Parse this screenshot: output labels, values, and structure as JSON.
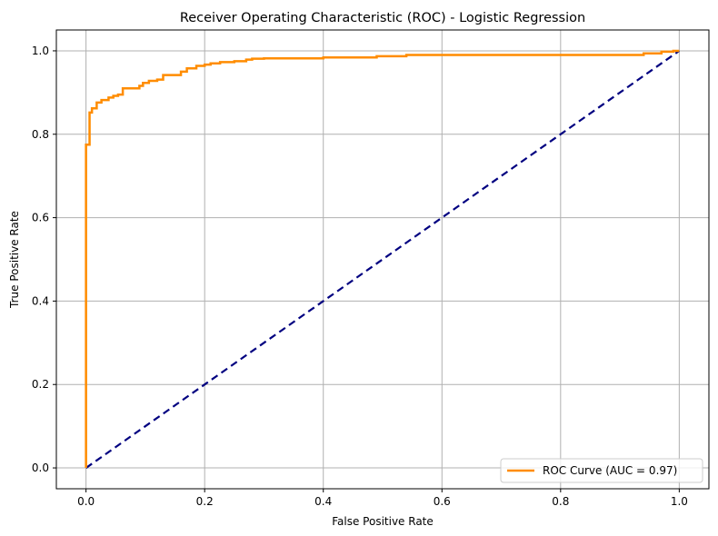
{
  "chart_data": {
    "type": "line",
    "title": "Receiver Operating Characteristic (ROC) - Logistic Regression",
    "xlabel": "False Positive Rate",
    "ylabel": "True Positive Rate",
    "xlim": [
      -0.05,
      1.05
    ],
    "ylim": [
      -0.05,
      1.05
    ],
    "grid": true,
    "legend_position": "lower-right",
    "x_ticks": [
      0.0,
      0.2,
      0.4,
      0.6,
      0.8,
      1.0
    ],
    "y_ticks": [
      0.0,
      0.2,
      0.4,
      0.6,
      0.8,
      1.0
    ],
    "x_tick_labels": [
      "0.0",
      "0.2",
      "0.4",
      "0.6",
      "0.8",
      "1.0"
    ],
    "y_tick_labels": [
      "0.0",
      "0.2",
      "0.4",
      "0.6",
      "0.8",
      "1.0"
    ],
    "colors": {
      "roc": "#ff8c00",
      "diagonal": "#000080",
      "grid": "#b0b0b0"
    },
    "series": [
      {
        "name": "ROC Curve (AUC = 0.97)",
        "style": "solid",
        "x": [
          0.0,
          0.0,
          0.006,
          0.006,
          0.01,
          0.01,
          0.018,
          0.018,
          0.026,
          0.026,
          0.038,
          0.038,
          0.046,
          0.046,
          0.054,
          0.054,
          0.062,
          0.062,
          0.09,
          0.09,
          0.096,
          0.096,
          0.106,
          0.106,
          0.12,
          0.12,
          0.13,
          0.13,
          0.16,
          0.16,
          0.17,
          0.17,
          0.186,
          0.186,
          0.2,
          0.2,
          0.21,
          0.21,
          0.226,
          0.226,
          0.25,
          0.25,
          0.27,
          0.27,
          0.28,
          0.28,
          0.3,
          0.3,
          0.4,
          0.4,
          0.49,
          0.49,
          0.54,
          0.54,
          0.94,
          0.94,
          0.97,
          0.97,
          0.99,
          0.99,
          1.0
        ],
        "y": [
          0.0,
          0.775,
          0.775,
          0.852,
          0.852,
          0.862,
          0.862,
          0.876,
          0.876,
          0.882,
          0.882,
          0.888,
          0.888,
          0.892,
          0.892,
          0.895,
          0.895,
          0.91,
          0.91,
          0.916,
          0.916,
          0.923,
          0.923,
          0.928,
          0.928,
          0.931,
          0.931,
          0.942,
          0.942,
          0.95,
          0.95,
          0.958,
          0.958,
          0.964,
          0.964,
          0.967,
          0.967,
          0.97,
          0.97,
          0.973,
          0.973,
          0.975,
          0.975,
          0.979,
          0.979,
          0.981,
          0.981,
          0.982,
          0.982,
          0.984,
          0.984,
          0.987,
          0.987,
          0.99,
          0.99,
          0.994,
          0.994,
          0.998,
          0.998,
          1.0,
          1.0
        ]
      },
      {
        "name": "",
        "style": "dashed",
        "x": [
          0.0,
          1.0
        ],
        "y": [
          0.0,
          1.0
        ]
      }
    ]
  }
}
